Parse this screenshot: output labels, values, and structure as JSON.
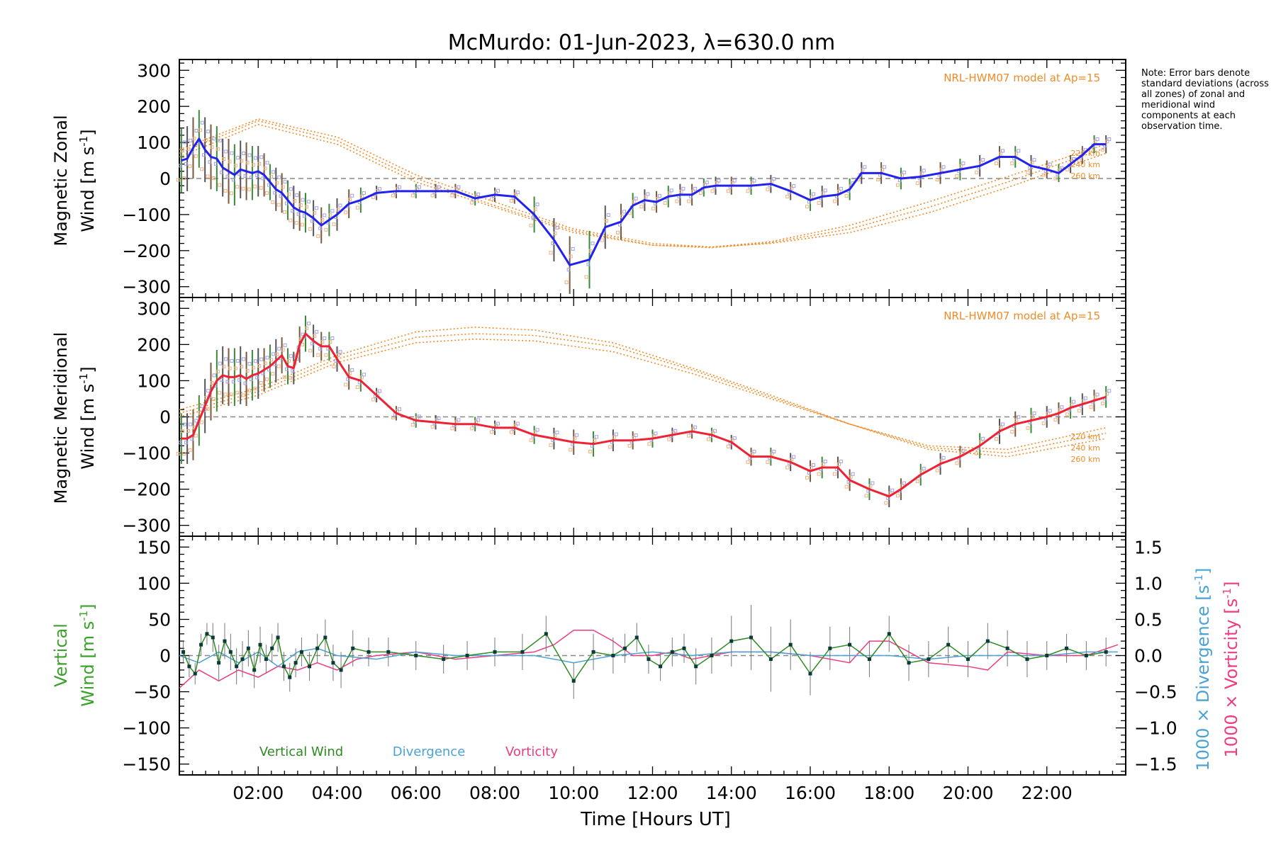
{
  "title": "McMurdo: 01-Jun-2023, λ=630.0 nm",
  "note": "Note: Error bars denote standard deviations (across all zones) of zonal and meridional wind components at each observation time.",
  "xlabel": "Time [Hours UT]",
  "colors": {
    "zonal": "#2222ee",
    "meridional": "#ee2233",
    "model": "#f08c28",
    "vertical": "#2e8b22",
    "divergence": "#4aa3d6",
    "vorticity": "#ee3c82",
    "errorbar": "#555555",
    "scatter": "#8888dd",
    "zeroline": "#888888"
  },
  "chart_data": [
    {
      "id": "zonal",
      "type": "line",
      "ylabel_line1": "Magnetic Zonal",
      "ylabel_line2": "Wind [m s",
      "ylabel_sup": "-1",
      "ylabel_end": "]",
      "xlim": [
        0,
        24
      ],
      "ylim": [
        -330,
        330
      ],
      "yticks": [
        300,
        200,
        100,
        0,
        -100,
        -200,
        -300
      ],
      "yticklabels": [
        "300",
        "200",
        "100",
        "0",
        "−100",
        "−200",
        "−300"
      ],
      "model_label": "NRL-HWM07 model at Ap=15",
      "altitudes": [
        "220 km",
        "240 km",
        "260 km"
      ],
      "x": [
        0.05,
        0.2,
        0.35,
        0.5,
        0.65,
        0.8,
        0.95,
        1.1,
        1.25,
        1.4,
        1.55,
        1.7,
        1.85,
        2.0,
        2.15,
        2.3,
        2.45,
        2.6,
        2.75,
        2.9,
        3.05,
        3.2,
        3.4,
        3.6,
        3.8,
        4.0,
        4.3,
        4.6,
        5.0,
        5.5,
        6.0,
        6.5,
        7.0,
        7.5,
        8.0,
        8.5,
        9.0,
        9.5,
        9.9,
        10.4,
        10.8,
        11.2,
        11.5,
        11.8,
        12.1,
        12.4,
        12.7,
        13.0,
        13.3,
        13.6,
        14.0,
        14.5,
        15.0,
        15.5,
        16.0,
        16.3,
        16.7,
        17.0,
        17.3,
        17.8,
        18.3,
        18.8,
        19.3,
        19.8,
        20.3,
        20.8,
        21.2,
        21.6,
        22.0,
        22.3,
        22.6,
        22.9,
        23.2,
        23.5
      ],
      "y": [
        50,
        55,
        85,
        110,
        80,
        60,
        55,
        30,
        20,
        10,
        25,
        20,
        15,
        20,
        10,
        -10,
        -30,
        -40,
        -60,
        -80,
        -90,
        -95,
        -110,
        -130,
        -115,
        -100,
        -70,
        -60,
        -40,
        -35,
        -35,
        -35,
        -35,
        -55,
        -45,
        -50,
        -100,
        -170,
        -240,
        -225,
        -135,
        -120,
        -75,
        -60,
        -65,
        -50,
        -45,
        -45,
        -25,
        -20,
        -20,
        -20,
        -15,
        -35,
        -60,
        -50,
        -45,
        -30,
        15,
        15,
        0,
        5,
        15,
        25,
        35,
        60,
        60,
        35,
        25,
        15,
        40,
        65,
        95,
        95
      ],
      "err": [
        90,
        90,
        85,
        80,
        90,
        90,
        90,
        80,
        90,
        85,
        80,
        80,
        75,
        70,
        60,
        50,
        60,
        55,
        55,
        60,
        55,
        55,
        50,
        50,
        45,
        45,
        40,
        35,
        20,
        20,
        20,
        20,
        20,
        20,
        20,
        20,
        50,
        60,
        80,
        80,
        60,
        50,
        35,
        30,
        30,
        30,
        30,
        30,
        25,
        25,
        25,
        25,
        25,
        25,
        30,
        30,
        30,
        30,
        30,
        30,
        30,
        30,
        30,
        30,
        30,
        30,
        30,
        30,
        25,
        25,
        25,
        25,
        25,
        25
      ],
      "model": [
        {
          "name": "220 km",
          "x": [
            0,
            2,
            4,
            6,
            8,
            10,
            12,
            13.5,
            15,
            17,
            19,
            21,
            23.5
          ],
          "y": [
            60,
            150,
            95,
            -10,
            -80,
            -150,
            -185,
            -190,
            -180,
            -150,
            -95,
            -25,
            70
          ]
        },
        {
          "name": "240 km",
          "x": [
            0,
            2,
            4,
            6,
            8,
            10,
            12,
            13.5,
            15,
            17,
            19,
            21,
            23.5
          ],
          "y": [
            70,
            160,
            105,
            0,
            -75,
            -145,
            -185,
            -192,
            -178,
            -140,
            -80,
            -10,
            85
          ]
        },
        {
          "name": "260 km",
          "x": [
            0,
            2,
            4,
            6,
            8,
            10,
            12,
            13.5,
            15,
            17,
            19,
            21,
            23.5
          ],
          "y": [
            80,
            165,
            115,
            10,
            -65,
            -140,
            -180,
            -190,
            -175,
            -130,
            -65,
            5,
            95
          ]
        }
      ]
    },
    {
      "id": "meridional",
      "type": "line",
      "ylabel_line1": "Magnetic Meridional",
      "ylabel_line2": "Wind [m s",
      "ylabel_sup": "-1",
      "ylabel_end": "]",
      "xlim": [
        0,
        24
      ],
      "ylim": [
        -330,
        330
      ],
      "yticks": [
        300,
        200,
        100,
        0,
        -100,
        -200,
        -300
      ],
      "yticklabels": [
        "300",
        "200",
        "100",
        "0",
        "−100",
        "−200",
        "−300"
      ],
      "model_label": "NRL-HWM07 model at Ap=15",
      "altitudes": [
        "220 km",
        "240 km",
        "260 km"
      ],
      "x": [
        0.05,
        0.2,
        0.35,
        0.5,
        0.65,
        0.8,
        0.95,
        1.1,
        1.25,
        1.4,
        1.55,
        1.7,
        1.85,
        2.0,
        2.15,
        2.3,
        2.45,
        2.6,
        2.75,
        2.9,
        3.05,
        3.2,
        3.4,
        3.6,
        3.8,
        4.0,
        4.3,
        4.6,
        5.0,
        5.5,
        6.0,
        6.5,
        7.0,
        7.5,
        8.0,
        8.5,
        9.0,
        9.5,
        10.0,
        10.5,
        11.0,
        11.5,
        12.0,
        12.5,
        13.0,
        13.5,
        14.0,
        14.5,
        15.0,
        15.5,
        16.0,
        16.3,
        16.7,
        17.0,
        17.5,
        18.0,
        18.3,
        18.8,
        19.3,
        19.8,
        20.3,
        20.8,
        21.2,
        21.6,
        22.0,
        22.3,
        22.6,
        22.9,
        23.2,
        23.5
      ],
      "y": [
        -60,
        -60,
        -50,
        -10,
        30,
        70,
        100,
        115,
        110,
        110,
        115,
        105,
        115,
        120,
        130,
        140,
        155,
        170,
        140,
        135,
        200,
        230,
        210,
        195,
        195,
        160,
        110,
        100,
        60,
        10,
        -10,
        -15,
        -20,
        -20,
        -30,
        -30,
        -50,
        -60,
        -70,
        -75,
        -65,
        -65,
        -60,
        -50,
        -40,
        -50,
        -70,
        -110,
        -110,
        -125,
        -150,
        -140,
        -140,
        -175,
        -200,
        -220,
        -200,
        -160,
        -130,
        -110,
        -80,
        -40,
        -20,
        -10,
        0,
        10,
        25,
        35,
        45,
        55
      ],
      "err": [
        70,
        70,
        70,
        70,
        75,
        80,
        85,
        80,
        80,
        80,
        80,
        75,
        70,
        70,
        60,
        60,
        60,
        50,
        50,
        45,
        50,
        50,
        45,
        40,
        40,
        35,
        35,
        30,
        20,
        20,
        20,
        20,
        20,
        20,
        20,
        20,
        25,
        30,
        35,
        35,
        30,
        25,
        25,
        20,
        20,
        20,
        20,
        25,
        25,
        25,
        30,
        30,
        30,
        30,
        30,
        30,
        30,
        30,
        30,
        30,
        35,
        35,
        35,
        35,
        30,
        30,
        30,
        30,
        30,
        30
      ],
      "model": [
        {
          "name": "220 km",
          "x": [
            0,
            2,
            4,
            6,
            7.5,
            9,
            11,
            13,
            15,
            17,
            19,
            21,
            23.5
          ],
          "y": [
            0,
            60,
            150,
            205,
            215,
            210,
            180,
            120,
            50,
            -20,
            -80,
            -90,
            -30
          ]
        },
        {
          "name": "240 km",
          "x": [
            0,
            2,
            4,
            6,
            7.5,
            9,
            11,
            13,
            15,
            17,
            19,
            21,
            23.5
          ],
          "y": [
            10,
            70,
            160,
            220,
            230,
            225,
            195,
            130,
            55,
            -20,
            -85,
            -100,
            -45
          ]
        },
        {
          "name": "260 km",
          "x": [
            0,
            2,
            4,
            6,
            7.5,
            9,
            11,
            13,
            15,
            17,
            19,
            21,
            23.5
          ],
          "y": [
            20,
            80,
            170,
            235,
            248,
            240,
            205,
            135,
            60,
            -20,
            -90,
            -110,
            -60
          ]
        }
      ]
    },
    {
      "id": "vertical",
      "type": "line",
      "ylabel_line1": "Vertical",
      "ylabel_line2": "Wind [m s",
      "ylabel_sup": "-1",
      "ylabel_end": "]",
      "y2label_div": "1000 × Divergence [s",
      "y2label_vor": "1000 × Vorticity [s",
      "y2label_sup": "-1",
      "y2label_end": "]",
      "xlim": [
        0,
        24
      ],
      "ylim": [
        -165,
        165
      ],
      "y2lim": [
        -1.65,
        1.65
      ],
      "yticks": [
        150,
        100,
        50,
        0,
        -50,
        -100,
        -150
      ],
      "yticklabels": [
        "150",
        "100",
        "50",
        "0",
        "−50",
        "−100",
        "−150"
      ],
      "y2ticks": [
        1.5,
        1.0,
        0.5,
        0.0,
        -0.5,
        -1.0,
        -1.5
      ],
      "y2ticklabels": [
        "1.5",
        "1.0",
        "0.5",
        "0.0",
        "−0.5",
        "−1.0",
        "−1.5"
      ],
      "xticks": [
        2,
        4,
        6,
        8,
        10,
        12,
        14,
        16,
        18,
        20,
        22
      ],
      "xticklabels": [
        "02:00",
        "04:00",
        "06:00",
        "08:00",
        "10:00",
        "12:00",
        "14:00",
        "16:00",
        "18:00",
        "20:00",
        "22:00"
      ],
      "legend": [
        "Vertical Wind",
        "Divergence",
        "Vorticity"
      ],
      "series": [
        {
          "name": "Vertical Wind",
          "x": [
            0.1,
            0.25,
            0.4,
            0.55,
            0.7,
            0.85,
            1.0,
            1.15,
            1.3,
            1.45,
            1.6,
            1.75,
            1.9,
            2.05,
            2.2,
            2.35,
            2.5,
            2.65,
            2.8,
            2.95,
            3.1,
            3.3,
            3.5,
            3.7,
            3.9,
            4.1,
            4.4,
            4.8,
            5.3,
            6.0,
            6.7,
            7.3,
            8.0,
            8.7,
            9.3,
            10.0,
            10.5,
            11.0,
            11.3,
            11.6,
            11.9,
            12.2,
            12.5,
            12.8,
            13.1,
            13.5,
            14.0,
            14.5,
            15.0,
            15.5,
            16.0,
            16.5,
            17.0,
            17.5,
            18.0,
            18.5,
            19.0,
            19.5,
            20.0,
            20.5,
            21.0,
            21.5,
            22.0,
            22.5,
            23.0,
            23.5
          ],
          "err": [
            15,
            15,
            15,
            15,
            15,
            20,
            25,
            25,
            25,
            25,
            25,
            25,
            25,
            25,
            20,
            20,
            20,
            20,
            20,
            20,
            20,
            20,
            20,
            25,
            25,
            25,
            25,
            20,
            20,
            20,
            20,
            20,
            20,
            25,
            25,
            25,
            25,
            25,
            20,
            20,
            20,
            20,
            20,
            20,
            25,
            25,
            35,
            45,
            45,
            35,
            30,
            30,
            25,
            25,
            25,
            25,
            25,
            25,
            25,
            25,
            25,
            25,
            20,
            20,
            20,
            20
          ],
          "y": [
            5,
            -15,
            -25,
            15,
            30,
            25,
            -10,
            20,
            5,
            -15,
            -5,
            10,
            -20,
            15,
            -5,
            10,
            25,
            -15,
            -30,
            -10,
            5,
            -15,
            10,
            25,
            -10,
            -20,
            10,
            5,
            5,
            0,
            -5,
            0,
            5,
            5,
            30,
            -35,
            5,
            0,
            10,
            25,
            -5,
            -15,
            5,
            10,
            -15,
            0,
            20,
            25,
            -5,
            15,
            -25,
            10,
            15,
            -5,
            30,
            -10,
            -5,
            15,
            -5,
            20,
            10,
            -5,
            0,
            10,
            0,
            5
          ]
        },
        {
          "name": "Divergence",
          "x": [
            0,
            0.5,
            1.0,
            1.5,
            2.0,
            2.5,
            3.0,
            3.5,
            4.0,
            5.0,
            6.0,
            7.0,
            8.0,
            9.0,
            10.0,
            11.0,
            12.0,
            13.0,
            14.0,
            15.0,
            16.0,
            17.0,
            18.0,
            19.0,
            20.0,
            21.0,
            22.0,
            23.0,
            23.8
          ],
          "y": [
            0.0,
            -0.1,
            0.05,
            -0.1,
            0.05,
            -0.15,
            0.05,
            0.1,
            0.0,
            -0.05,
            0.05,
            0.0,
            0.0,
            0.0,
            -0.1,
            0.0,
            0.05,
            0.0,
            0.05,
            0.05,
            0.0,
            0.0,
            0.0,
            -0.05,
            0.0,
            0.0,
            0.0,
            0.05,
            0.05
          ]
        },
        {
          "name": "Vorticity",
          "x": [
            0,
            0.5,
            1.0,
            1.5,
            2.0,
            2.5,
            3.0,
            3.5,
            4.0,
            4.5,
            5.0,
            6.0,
            7.0,
            8.0,
            9.0,
            9.5,
            10.0,
            10.5,
            11.0,
            11.5,
            12.0,
            12.5,
            13.0,
            14.0,
            15.0,
            16.0,
            17.0,
            17.5,
            18.0,
            19.0,
            20.0,
            20.5,
            21.0,
            22.0,
            23.0,
            23.8
          ],
          "y": [
            -0.45,
            -0.2,
            -0.35,
            -0.2,
            -0.3,
            -0.15,
            -0.2,
            -0.1,
            -0.2,
            -0.05,
            0.0,
            0.05,
            -0.05,
            0.0,
            0.05,
            0.15,
            0.35,
            0.35,
            0.2,
            0.0,
            0.0,
            0.05,
            -0.05,
            0.05,
            0.05,
            0.0,
            -0.1,
            0.2,
            0.2,
            -0.1,
            -0.15,
            -0.2,
            0.05,
            0.0,
            0.0,
            0.15
          ]
        }
      ]
    }
  ]
}
